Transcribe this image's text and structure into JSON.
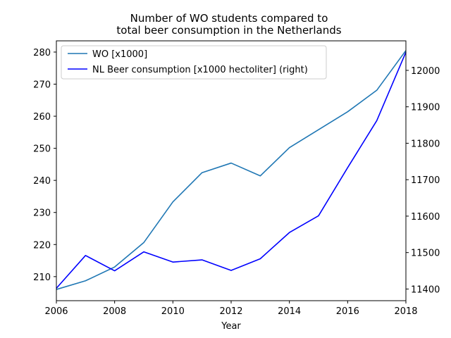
{
  "chart_data": {
    "type": "line",
    "title_lines": [
      "Number of WO students compared to",
      "total beer consumption in the Netherlands"
    ],
    "xlabel": "Year",
    "x": [
      2006,
      2007,
      2008,
      2009,
      2010,
      2011,
      2012,
      2013,
      2014,
      2015,
      2016,
      2017,
      2018
    ],
    "xlim": [
      2006,
      2018
    ],
    "xticks": [
      2006,
      2008,
      2010,
      2012,
      2014,
      2016,
      2018
    ],
    "ylim_left": [
      202.5,
      283.5
    ],
    "yticks_left": [
      210,
      220,
      230,
      240,
      250,
      260,
      270,
      280
    ],
    "ylim_right": [
      11368,
      12081
    ],
    "yticks_right": [
      11400,
      11500,
      11600,
      11700,
      11800,
      11900,
      12000
    ],
    "series": [
      {
        "name": "WO [x1000]",
        "axis": "left",
        "color": "#1f77b4",
        "values": [
          206.0,
          208.7,
          213.0,
          220.6,
          233.3,
          242.4,
          245.4,
          241.4,
          250.2,
          255.8,
          261.4,
          268.1,
          280.5
        ]
      },
      {
        "name": "NL Beer consumption [x1000 hectoliter] (right)",
        "axis": "right",
        "color": "#0000ff",
        "values": [
          11402,
          11492,
          11450,
          11502,
          11474,
          11480,
          11451,
          11483,
          11555,
          11601,
          11733,
          11862,
          12050
        ]
      }
    ],
    "legend_position": "upper left"
  }
}
